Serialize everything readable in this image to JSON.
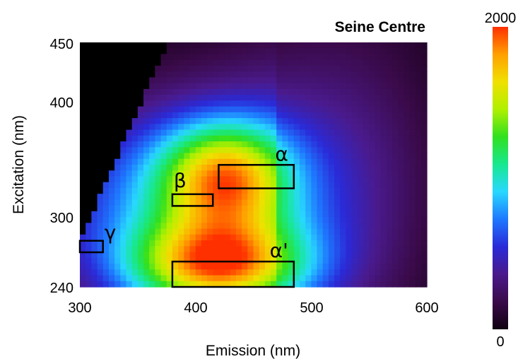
{
  "chart_data": {
    "type": "heatmap",
    "title": "Seine Centre",
    "xlabel": "Emission (nm)",
    "ylabel": "Excitation (nm)",
    "xlim": [
      300,
      600
    ],
    "ylim": [
      240,
      450
    ],
    "x_ticks": [
      "300",
      "400",
      "500",
      "600"
    ],
    "y_ticks": [
      "240",
      "300",
      "400",
      "450"
    ],
    "colorbar": {
      "min": 0,
      "max": 2000,
      "min_label": "0",
      "max_label": "2000",
      "colors": [
        "#100010",
        "#3a0a4a",
        "#4a1a8c",
        "#2a2ad8",
        "#1e78ff",
        "#28d8ff",
        "#18e890",
        "#30e020",
        "#b0f000",
        "#f0e000",
        "#ffa000",
        "#ff3000"
      ]
    },
    "peaks": [
      {
        "label": "α",
        "emission": [
          420,
          485
        ],
        "excitation": [
          325,
          345
        ]
      },
      {
        "label": "β",
        "emission": [
          380,
          415
        ],
        "excitation": [
          310,
          320
        ]
      },
      {
        "label": "γ",
        "emission": [
          300,
          320
        ],
        "excitation": [
          270,
          280
        ]
      },
      {
        "label": "α'",
        "emission": [
          380,
          485
        ],
        "excitation": [
          240,
          262
        ]
      }
    ]
  }
}
